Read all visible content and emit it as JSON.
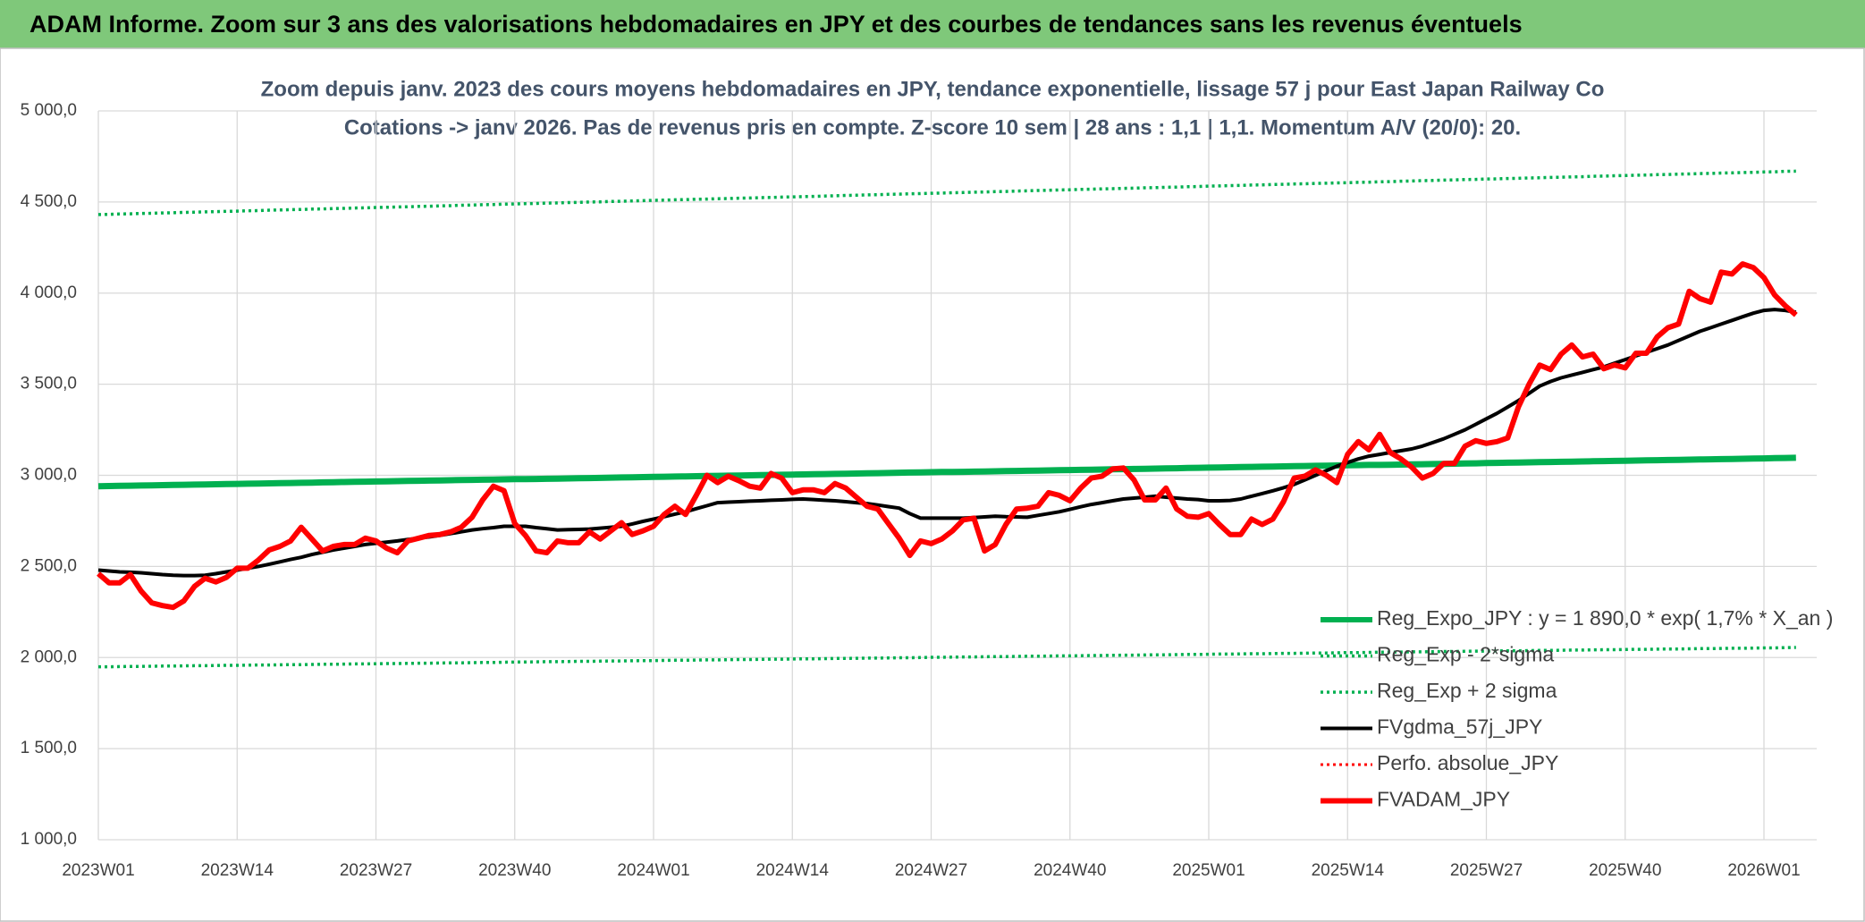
{
  "header": {
    "title": "ADAM Informe. Zoom sur 3 ans des valorisations hebdomadaires en JPY et des courbes de tendances sans les revenus éventuels"
  },
  "chart_data": {
    "type": "line",
    "title": "Zoom depuis janv. 2023 des cours moyens hebdomadaires en JPY, tendance exponentielle, lissage 57 j pour East Japan Railway Co",
    "subtitle": "Cotations -> janv 2026. Pas de revenus pris en compte. Z-score 10 sem | 28 ans : 1,1 | 1,1. Momentum A/V (20/0): 20.",
    "grid": true,
    "legend": "lower right",
    "ylim": [
      1000,
      5000
    ],
    "yticks": [
      {
        "value": 1000,
        "label": "1 000,0"
      },
      {
        "value": 1500,
        "label": "1 500,0"
      },
      {
        "value": 2000,
        "label": "2 000,0"
      },
      {
        "value": 2500,
        "label": "2 500,0"
      },
      {
        "value": 3000,
        "label": "3 000,0"
      },
      {
        "value": 3500,
        "label": "3 500,0"
      },
      {
        "value": 4000,
        "label": "4 000,0"
      },
      {
        "value": 4500,
        "label": "4 500,0"
      },
      {
        "value": 5000,
        "label": "5 000,0"
      }
    ],
    "categories": [
      "2023W01",
      null,
      null,
      null,
      null,
      null,
      null,
      null,
      null,
      null,
      null,
      null,
      null,
      "2023W14",
      null,
      null,
      null,
      null,
      null,
      null,
      null,
      null,
      null,
      null,
      null,
      null,
      "2023W27",
      null,
      null,
      null,
      null,
      null,
      null,
      null,
      null,
      null,
      null,
      null,
      null,
      "2023W40",
      null,
      null,
      null,
      null,
      null,
      null,
      null,
      null,
      null,
      null,
      null,
      null,
      "2024W01",
      null,
      null,
      null,
      null,
      null,
      null,
      null,
      null,
      null,
      null,
      null,
      null,
      "2024W14",
      null,
      null,
      null,
      null,
      null,
      null,
      null,
      null,
      null,
      null,
      null,
      null,
      "2024W27",
      null,
      null,
      null,
      null,
      null,
      null,
      null,
      null,
      null,
      null,
      null,
      null,
      "2024W40",
      null,
      null,
      null,
      null,
      null,
      null,
      null,
      null,
      null,
      null,
      null,
      null,
      "2025W01",
      null,
      null,
      null,
      null,
      null,
      null,
      null,
      null,
      null,
      null,
      null,
      null,
      "2025W14",
      null,
      null,
      null,
      null,
      null,
      null,
      null,
      null,
      null,
      null,
      null,
      null,
      "2025W27",
      null,
      null,
      null,
      null,
      null,
      null,
      null,
      null,
      null,
      null,
      null,
      null,
      "2025W40",
      null,
      null,
      null,
      null,
      null,
      null,
      null,
      null,
      null,
      null,
      null,
      null,
      "2026W01",
      null,
      null,
      null
    ],
    "series": [
      {
        "name": "Reg_Expo_JPY : y = 1 890,0 * exp( 1,7% *  X_an )",
        "color": "#00b050",
        "line_style": "solid",
        "values": [
          2940,
          2941,
          2942,
          2943,
          2944,
          2945,
          2946,
          2947,
          2948,
          2949,
          2950,
          2951,
          2952,
          2953,
          2954,
          2955,
          2956,
          2957,
          2958,
          2959,
          2960,
          2961,
          2962,
          2963,
          2964,
          2965,
          2966,
          2967,
          2968,
          2969,
          2970,
          2971,
          2972,
          2973,
          2974,
          2975,
          2976,
          2977,
          2978,
          2979,
          2979,
          2980,
          2981,
          2982,
          2983,
          2984,
          2985,
          2986,
          2987,
          2988,
          2989,
          2990,
          2991,
          2992,
          2993,
          2994,
          2995,
          2996,
          2997,
          2998,
          2999,
          3000,
          3001,
          3002,
          3003,
          3004,
          3005,
          3006,
          3007,
          3008,
          3009,
          3010,
          3011,
          3012,
          3013,
          3014,
          3015,
          3016,
          3017,
          3018,
          3018,
          3019,
          3020,
          3021,
          3022,
          3023,
          3024,
          3025,
          3026,
          3027,
          3028,
          3029,
          3030,
          3031,
          3032,
          3033,
          3034,
          3035,
          3036,
          3037,
          3038,
          3039,
          3040,
          3041,
          3042,
          3043,
          3044,
          3045,
          3046,
          3047,
          3048,
          3049,
          3050,
          3051,
          3052,
          3053,
          3054,
          3055,
          3056,
          3057,
          3057,
          3058,
          3059,
          3060,
          3061,
          3062,
          3063,
          3064,
          3065,
          3066,
          3067,
          3068,
          3069,
          3070,
          3071,
          3072,
          3073,
          3074,
          3075,
          3076,
          3077,
          3078,
          3079,
          3080,
          3081,
          3082,
          3083,
          3084,
          3085,
          3086,
          3087,
          3088,
          3089,
          3090,
          3091,
          3092,
          3093,
          3094,
          3095,
          3096
        ]
      },
      {
        "name": "Reg_Exp - 2*sigma",
        "color": "#00b050",
        "line_style": "dotted",
        "values": [
          1949,
          1949,
          1950,
          1951,
          1951,
          1952,
          1953,
          1953,
          1954,
          1955,
          1955,
          1956,
          1957,
          1957,
          1958,
          1959,
          1959,
          1960,
          1961,
          1961,
          1962,
          1963,
          1963,
          1964,
          1965,
          1965,
          1966,
          1967,
          1967,
          1968,
          1969,
          1969,
          1970,
          1971,
          1971,
          1972,
          1973,
          1973,
          1974,
          1975,
          1975,
          1976,
          1977,
          1977,
          1978,
          1979,
          1979,
          1980,
          1981,
          1981,
          1982,
          1983,
          1983,
          1984,
          1985,
          1985,
          1986,
          1987,
          1987,
          1988,
          1989,
          1989,
          1990,
          1991,
          1991,
          1992,
          1993,
          1993,
          1994,
          1995,
          1995,
          1996,
          1997,
          1997,
          1998,
          1999,
          1999,
          2000,
          2001,
          2001,
          2002,
          2003,
          2003,
          2004,
          2005,
          2005,
          2006,
          2007,
          2007,
          2008,
          2009,
          2009,
          2010,
          2011,
          2011,
          2012,
          2013,
          2013,
          2014,
          2015,
          2015,
          2016,
          2017,
          2017,
          2018,
          2019,
          2019,
          2020,
          2021,
          2021,
          2022,
          2023,
          2023,
          2024,
          2025,
          2025,
          2026,
          2027,
          2027,
          2028,
          2029,
          2029,
          2030,
          2031,
          2031,
          2032,
          2033,
          2033,
          2034,
          2035,
          2035,
          2036,
          2037,
          2037,
          2038,
          2039,
          2039,
          2040,
          2041,
          2041,
          2042,
          2043,
          2043,
          2044,
          2045,
          2045,
          2046,
          2047,
          2047,
          2048,
          2049,
          2049,
          2050,
          2051,
          2051,
          2052,
          2053,
          2053,
          2054,
          2055
        ]
      },
      {
        "name": "Reg_Exp + 2 sigma",
        "color": "#00b050",
        "line_style": "dotted",
        "values": [
          4431,
          4432,
          4434,
          4435,
          4437,
          4438,
          4440,
          4441,
          4443,
          4444,
          4446,
          4447,
          4449,
          4450,
          4452,
          4453,
          4455,
          4456,
          4458,
          4459,
          4461,
          4462,
          4464,
          4465,
          4467,
          4468,
          4470,
          4471,
          4473,
          4474,
          4476,
          4477,
          4479,
          4480,
          4482,
          4483,
          4485,
          4486,
          4488,
          4489,
          4491,
          4492,
          4494,
          4495,
          4497,
          4498,
          4500,
          4501,
          4503,
          4504,
          4506,
          4507,
          4509,
          4510,
          4512,
          4513,
          4515,
          4516,
          4518,
          4519,
          4521,
          4522,
          4524,
          4525,
          4527,
          4528,
          4530,
          4531,
          4533,
          4534,
          4536,
          4537,
          4539,
          4540,
          4542,
          4543,
          4545,
          4546,
          4548,
          4549,
          4551,
          4552,
          4554,
          4555,
          4557,
          4558,
          4560,
          4561,
          4563,
          4564,
          4566,
          4567,
          4569,
          4570,
          4572,
          4573,
          4575,
          4576,
          4578,
          4579,
          4581,
          4582,
          4584,
          4585,
          4587,
          4588,
          4590,
          4591,
          4593,
          4594,
          4596,
          4597,
          4599,
          4600,
          4602,
          4603,
          4605,
          4606,
          4608,
          4609,
          4611,
          4612,
          4614,
          4615,
          4617,
          4618,
          4620,
          4621,
          4623,
          4624,
          4626,
          4627,
          4629,
          4630,
          4632,
          4633,
          4635,
          4636,
          4638,
          4639,
          4641,
          4642,
          4644,
          4645,
          4647,
          4648,
          4650,
          4651,
          4653,
          4654,
          4656,
          4657,
          4659,
          4660,
          4662,
          4663,
          4665,
          4666,
          4668,
          4669
        ]
      },
      {
        "name": "FVgdma_57j_JPY",
        "color": "#000000",
        "line_style": "solid",
        "values": [
          2480,
          2475,
          2470,
          2468,
          2465,
          2460,
          2455,
          2452,
          2450,
          2450,
          2452,
          2460,
          2470,
          2480,
          2490,
          2500,
          2512,
          2525,
          2538,
          2550,
          2565,
          2578,
          2590,
          2600,
          2610,
          2620,
          2627,
          2633,
          2640,
          2648,
          2655,
          2662,
          2670,
          2680,
          2690,
          2700,
          2707,
          2713,
          2720,
          2720,
          2720,
          2713,
          2707,
          2700,
          2702,
          2703,
          2705,
          2710,
          2715,
          2720,
          2733,
          2747,
          2760,
          2773,
          2787,
          2800,
          2817,
          2833,
          2850,
          2853,
          2855,
          2858,
          2860,
          2863,
          2865,
          2868,
          2870,
          2867,
          2863,
          2860,
          2855,
          2850,
          2845,
          2837,
          2828,
          2820,
          2790,
          2765,
          2765,
          2765,
          2765,
          2765,
          2768,
          2772,
          2775,
          2773,
          2772,
          2770,
          2780,
          2790,
          2800,
          2813,
          2827,
          2840,
          2850,
          2860,
          2870,
          2875,
          2880,
          2885,
          2880,
          2875,
          2870,
          2867,
          2860,
          2860,
          2862,
          2870,
          2885,
          2900,
          2915,
          2932,
          2950,
          2975,
          3000,
          3025,
          3050,
          3070,
          3090,
          3105,
          3115,
          3125,
          3135,
          3145,
          3160,
          3180,
          3200,
          3225,
          3250,
          3280,
          3310,
          3340,
          3375,
          3410,
          3450,
          3490,
          3515,
          3535,
          3550,
          3565,
          3580,
          3595,
          3615,
          3635,
          3655,
          3675,
          3695,
          3715,
          3740,
          3765,
          3790,
          3810,
          3830,
          3850,
          3870,
          3890,
          3905,
          3910,
          3905,
          3895
        ]
      },
      {
        "name": "Perfo. absolue_JPY",
        "color": "#ff0000",
        "line_style": "dotted",
        "values": [
          null,
          null,
          null,
          null,
          null,
          null,
          null,
          null,
          null,
          null,
          null,
          null,
          null,
          null,
          null,
          null,
          null,
          null,
          null,
          null,
          null,
          null,
          null,
          null,
          null,
          null,
          null,
          null,
          null,
          null,
          null,
          null,
          null,
          null,
          null,
          null,
          null,
          null,
          null,
          null,
          null,
          null,
          null,
          null,
          null,
          null,
          null,
          null,
          null,
          null,
          null,
          null,
          null,
          null,
          null,
          null,
          null,
          null,
          null,
          null,
          null,
          null,
          null,
          null,
          null,
          null,
          null,
          null,
          null,
          null,
          null,
          null,
          null,
          null,
          null,
          null,
          null,
          null,
          null,
          null,
          null,
          null,
          null,
          null,
          null,
          null,
          null,
          null,
          null,
          null,
          null,
          null,
          null,
          null,
          null,
          null,
          null,
          null,
          null,
          null,
          null,
          null,
          null,
          null,
          null,
          null,
          null,
          null,
          null,
          null,
          null,
          null,
          null,
          null,
          null,
          null,
          null,
          null,
          null,
          null,
          null,
          null,
          null,
          null,
          null,
          null,
          null,
          null,
          null,
          null,
          null,
          null,
          null,
          null,
          null,
          null,
          null,
          null,
          null,
          null,
          null,
          null,
          null,
          null,
          null,
          null,
          null,
          null,
          null,
          null,
          null,
          null,
          null,
          null,
          null,
          null,
          null,
          null,
          null,
          null
        ]
      },
      {
        "name": "FVADAM_JPY",
        "color": "#ff0000",
        "line_style": "solid",
        "values": [
          2460,
          2410,
          2410,
          2455,
          2365,
          2300,
          2285,
          2275,
          2310,
          2390,
          2435,
          2415,
          2440,
          2490,
          2490,
          2535,
          2590,
          2610,
          2640,
          2715,
          2650,
          2585,
          2610,
          2620,
          2620,
          2655,
          2640,
          2600,
          2575,
          2640,
          2655,
          2670,
          2675,
          2690,
          2715,
          2770,
          2865,
          2940,
          2915,
          2735,
          2670,
          2585,
          2575,
          2640,
          2630,
          2630,
          2690,
          2650,
          2695,
          2740,
          2675,
          2695,
          2720,
          2785,
          2830,
          2785,
          2890,
          3000,
          2960,
          2995,
          2970,
          2940,
          2930,
          3010,
          2985,
          2905,
          2920,
          2920,
          2905,
          2955,
          2930,
          2880,
          2830,
          2815,
          2735,
          2655,
          2560,
          2640,
          2625,
          2650,
          2695,
          2755,
          2765,
          2585,
          2620,
          2730,
          2815,
          2820,
          2830,
          2905,
          2890,
          2860,
          2930,
          2985,
          2995,
          3035,
          3040,
          2975,
          2865,
          2865,
          2930,
          2815,
          2775,
          2770,
          2790,
          2730,
          2675,
          2675,
          2760,
          2730,
          2760,
          2855,
          2985,
          2995,
          3030,
          3000,
          2960,
          3115,
          3185,
          3140,
          3225,
          3125,
          3090,
          3045,
          2985,
          3010,
          3065,
          3065,
          3160,
          3190,
          3175,
          3185,
          3205,
          3375,
          3500,
          3605,
          3580,
          3665,
          3715,
          3650,
          3665,
          3585,
          3605,
          3590,
          3670,
          3670,
          3760,
          3810,
          3830,
          4010,
          3970,
          3950,
          4115,
          4105,
          4160,
          4140,
          4085,
          3990,
          3930,
          3880
        ]
      }
    ]
  }
}
